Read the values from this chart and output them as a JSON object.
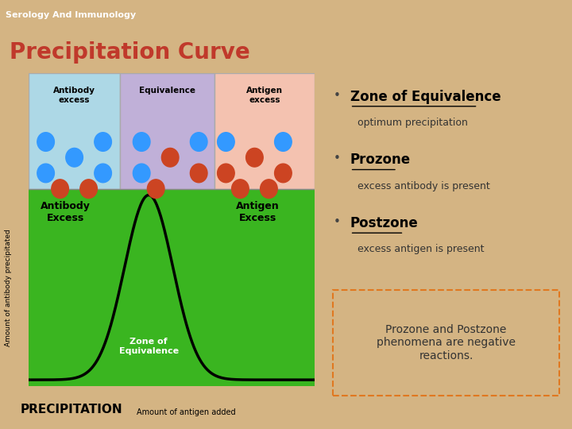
{
  "bg_color": "#d4b483",
  "header_color": "#7a8a8a",
  "header_text": "Serology And Immunology",
  "header_text_color": "#ffffff",
  "title": "Precipitation Curve",
  "title_color": "#c0392b",
  "bullet_points": [
    {
      "heading": "Zone of Equivalence",
      "subtext": "optimum precipitation"
    },
    {
      "heading": "Prozone",
      "subtext": "excess antibody is present"
    },
    {
      "heading": "Postzone",
      "subtext": "excess antigen is present"
    }
  ],
  "box_text_line1": "Prozone and Postzone",
  "box_text_line2": "phenomena are negative",
  "box_text_line3": "reactions.",
  "box_border_color": "#e07820",
  "chart_bg_color": "#ffffff",
  "chart_plot_color": "#3ab520",
  "chart_curve_color": "#000000",
  "antibody_box_color": "#add8e6",
  "equivalence_box_color": "#c0b0d8",
  "antigen_box_color": "#f4c2b0",
  "antibody_excess_label": "Antibody\nexcess",
  "equivalence_label": "Equivalence",
  "antigen_excess_label": "Antigen\nexcess",
  "antibody_excess_chart_label": "Antibody\nExcess",
  "antigen_excess_chart_label": "Antigen\nExcess",
  "zone_equivalence_label": "Zone of\nEquivalence",
  "ylabel": "Amount of antibody precipitated",
  "xlabel": "Amount of antigen added",
  "footer_label": "PRECIPITATION"
}
